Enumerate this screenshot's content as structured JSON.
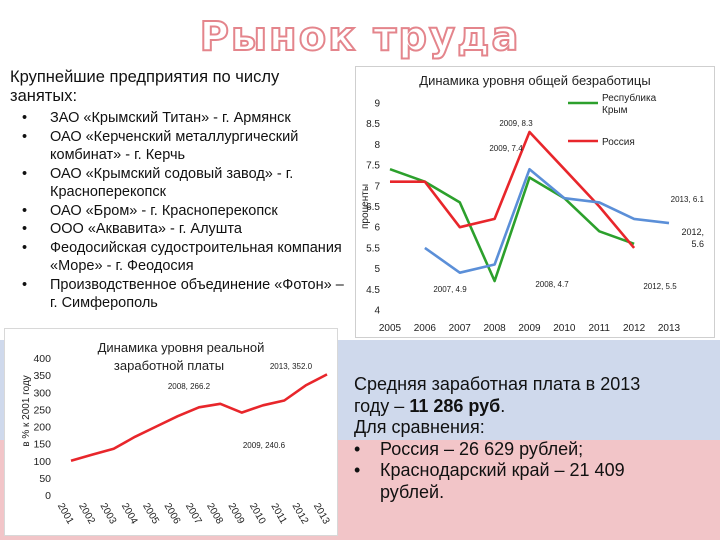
{
  "title": "Рынок труда",
  "enterprises": {
    "heading": "Крупнейшие предприятия по числу занятых:",
    "items": [
      "ЗАО «Крымский Титан» - г. Армянск",
      "ОАО «Керченский металлургический комбинат» - г. Керчь",
      "ОАО «Крымский содовый завод» - г. Красноперекопск",
      "ОАО «Бром» - г. Красноперекопск",
      "ООО «Аквавита» - г. Алушта",
      "Феодосийская судостроительная компания «Море» - г. Феодосия",
      "Производственное объединение «Фотон» – г. Симферополь"
    ]
  },
  "salary_info": {
    "line1": "Средняя заработная плата в 2013",
    "line2_prefix": "году – ",
    "line2_value": "11 286 руб",
    "line2_suffix": ".",
    "line3": "Для сравнения:",
    "bullet1": "Россия – 26 629 рублей;",
    "bullet2_a": "Краснодарский край – 21 409",
    "bullet2_b": "рублей."
  },
  "colors": {
    "crimea": "#2ca02c",
    "russia": "#e8262b",
    "wage": "#e8262b",
    "title_outline": "#e4858c"
  },
  "chart_data": [
    {
      "type": "line",
      "title": "Динамика уровня общей безработицы",
      "ylabel": "проценты",
      "xlabel": "",
      "x": [
        "2005",
        "2006",
        "2007",
        "2008",
        "2009",
        "2010",
        "2011",
        "2012",
        "2013"
      ],
      "ylim": [
        4,
        9
      ],
      "yticks": [
        "4",
        "4.5",
        "5",
        "5.5",
        "6",
        "6.5",
        "7",
        "7.5",
        "8",
        "8.5",
        "9"
      ],
      "grid": false,
      "legend": "top-right",
      "series": [
        {
          "name": "Республика Крым",
          "color": "#2ca02c",
          "values": [
            7.4,
            7.1,
            6.6,
            4.7,
            7.2,
            6.7,
            5.9,
            5.6,
            null
          ]
        },
        {
          "name": "Россия",
          "color": "#e8262b",
          "values": [
            7.1,
            7.1,
            6.0,
            6.2,
            8.3,
            7.4,
            6.5,
            5.5,
            null
          ]
        },
        {
          "name": "",
          "color": "#5b8fd8",
          "values": [
            null,
            5.5,
            4.9,
            5.1,
            7.4,
            6.7,
            6.6,
            6.2,
            6.1
          ]
        }
      ],
      "annotations": [
        {
          "text": "2009, 8.3"
        },
        {
          "text": "2009, 7.4"
        },
        {
          "text": "2013, 6.1"
        },
        {
          "text": "2012, 5.6"
        },
        {
          "text": "2007, 4.9"
        },
        {
          "text": "2008, 4.7"
        },
        {
          "text": "2012, 5.5"
        }
      ]
    },
    {
      "type": "line",
      "title": "Динамика уровня реальной заработной платы",
      "ylabel": "в % к 2001 году",
      "xlabel": "",
      "x": [
        "2001",
        "2002",
        "2003",
        "2004",
        "2005",
        "2006",
        "2007",
        "2008",
        "2009",
        "2010",
        "2011",
        "2012",
        "2013"
      ],
      "ylim": [
        0,
        400
      ],
      "yticks": [
        "0",
        "50",
        "100",
        "150",
        "200",
        "250",
        "300",
        "350",
        "400"
      ],
      "grid": false,
      "series": [
        {
          "name": "",
          "color": "#e8262b",
          "values": [
            100,
            118,
            135,
            170,
            200,
            230,
            256,
            266.2,
            240.6,
            262,
            276,
            320,
            352
          ]
        }
      ],
      "annotations": [
        {
          "text": "2013, 352.0"
        },
        {
          "text": "2008, 266.2"
        },
        {
          "text": "2009, 240.6"
        }
      ]
    }
  ]
}
